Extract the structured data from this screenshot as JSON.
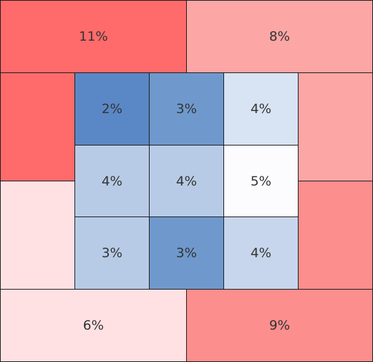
{
  "colors": {
    "red_strong": "#ff6b6b",
    "red_medium": "#fc8e8e",
    "red_light": "#fca6a6",
    "red_pale": "#ffe1e3",
    "blue_strong": "#5a88c6",
    "blue_medium": "#6f99cd",
    "blue_light": "#b8cbe6",
    "blue_lighter": "#c7d6ec",
    "blue_pale": "#d8e4f3",
    "white": "#fcfcff",
    "border": "#1a1a1a",
    "text": "#333333"
  },
  "outer": {
    "top_left": {
      "label": "11%",
      "color": "#ff6b6b"
    },
    "top_right": {
      "label": "8%",
      "color": "#fca6a6"
    },
    "left_upper": {
      "label": "",
      "color": "#ff6b6b"
    },
    "left_lower": {
      "label": "",
      "color": "#ffe1e3"
    },
    "right_upper": {
      "label": "",
      "color": "#fca6a6"
    },
    "right_lower": {
      "label": "",
      "color": "#fc8e8e"
    },
    "bottom_left": {
      "label": "6%",
      "color": "#ffe1e3"
    },
    "bottom_right": {
      "label": "9%",
      "color": "#fc8e8e"
    }
  },
  "grid": [
    [
      {
        "label": "2%",
        "color": "#5a88c6"
      },
      {
        "label": "3%",
        "color": "#6f99cd"
      },
      {
        "label": "4%",
        "color": "#d8e4f3"
      }
    ],
    [
      {
        "label": "4%",
        "color": "#b8cbe6"
      },
      {
        "label": "4%",
        "color": "#b8cbe6"
      },
      {
        "label": "5%",
        "color": "#fcfcff"
      }
    ],
    [
      {
        "label": "3%",
        "color": "#b8cbe6"
      },
      {
        "label": "3%",
        "color": "#6f99cd"
      },
      {
        "label": "4%",
        "color": "#c7d6ec"
      }
    ]
  ]
}
